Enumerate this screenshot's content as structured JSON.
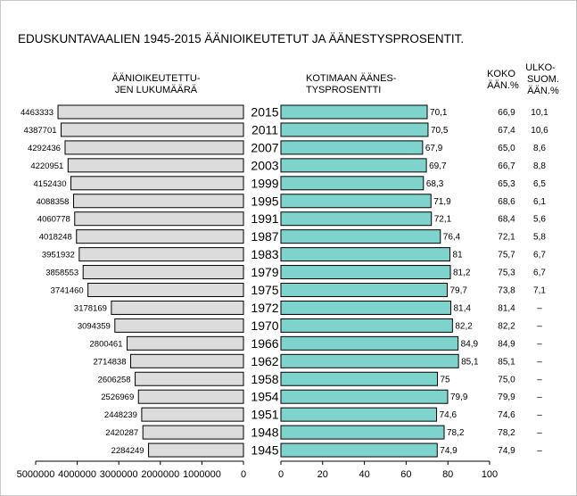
{
  "chart_data": {
    "type": "bar",
    "title": "EDUSKUNTAVAALIEN 1945-2015 ÄÄNIOIKEUTETUT JA ÄÄNESTYSPROSENTIT.",
    "left_panel": {
      "header_lines": [
        "ÄÄNIOIKEUTETTU-",
        "JEN LUKUMÄÄRÄ"
      ],
      "xlim": [
        0,
        5000000
      ],
      "reversed": true,
      "tick_labels": [
        "5000000",
        "4000000",
        "3000000",
        "2000000",
        "1000000",
        "0"
      ],
      "ticks": [
        5000000,
        4000000,
        3000000,
        2000000,
        1000000,
        0
      ]
    },
    "right_panel": {
      "header_lines": [
        "KOTIMAAN ÄÄNES-",
        "TYSPROSENTTI"
      ],
      "xlim": [
        0,
        100
      ],
      "tick_labels": [
        "0",
        "20",
        "40",
        "60",
        "80",
        "100"
      ],
      "ticks": [
        0,
        20,
        40,
        60,
        80,
        100
      ]
    },
    "col_koko_header": [
      "KOKO",
      "ÄÄN.%"
    ],
    "col_ulko_header": [
      "ULKO-",
      "SUOM.",
      "ÄÄN.%"
    ],
    "colors": {
      "left_bar": "#dcdcdc",
      "right_bar": "#7fd3cd",
      "bar_stroke": "#000000"
    },
    "rows": [
      {
        "year": "2015",
        "eligible": 4463333,
        "eligible_label": "4463333",
        "domestic_pct": 70.1,
        "domestic_label": "70,1",
        "total_pct": "66,9",
        "abroad_pct": "10,1"
      },
      {
        "year": "2011",
        "eligible": 4387701,
        "eligible_label": "4387701",
        "domestic_pct": 70.5,
        "domestic_label": "70,5",
        "total_pct": "67,4",
        "abroad_pct": "10,6"
      },
      {
        "year": "2007",
        "eligible": 4292436,
        "eligible_label": "4292436",
        "domestic_pct": 67.9,
        "domestic_label": "67,9",
        "total_pct": "65,0",
        "abroad_pct": "8,6"
      },
      {
        "year": "2003",
        "eligible": 4220951,
        "eligible_label": "4220951",
        "domestic_pct": 69.7,
        "domestic_label": "69,7",
        "total_pct": "66,7",
        "abroad_pct": "8,8"
      },
      {
        "year": "1999",
        "eligible": 4152430,
        "eligible_label": "4152430",
        "domestic_pct": 68.3,
        "domestic_label": "68,3",
        "total_pct": "65,3",
        "abroad_pct": "6,5"
      },
      {
        "year": "1995",
        "eligible": 4088358,
        "eligible_label": "4088358",
        "domestic_pct": 71.9,
        "domestic_label": "71,9",
        "total_pct": "68,6",
        "abroad_pct": "6,1"
      },
      {
        "year": "1991",
        "eligible": 4060778,
        "eligible_label": "4060778",
        "domestic_pct": 72.1,
        "domestic_label": "72,1",
        "total_pct": "68,4",
        "abroad_pct": "5,6"
      },
      {
        "year": "1987",
        "eligible": 4018248,
        "eligible_label": "4018248",
        "domestic_pct": 76.4,
        "domestic_label": "76,4",
        "total_pct": "72,1",
        "abroad_pct": "5,8"
      },
      {
        "year": "1983",
        "eligible": 3951932,
        "eligible_label": "3951932",
        "domestic_pct": 81,
        "domestic_label": "81",
        "total_pct": "75,7",
        "abroad_pct": "6,7"
      },
      {
        "year": "1979",
        "eligible": 3858553,
        "eligible_label": "3858553",
        "domestic_pct": 81.2,
        "domestic_label": "81,2",
        "total_pct": "75,3",
        "abroad_pct": "6,7"
      },
      {
        "year": "1975",
        "eligible": 3741460,
        "eligible_label": "3741460",
        "domestic_pct": 79.7,
        "domestic_label": "79,7",
        "total_pct": "73,8",
        "abroad_pct": "7,1"
      },
      {
        "year": "1972",
        "eligible": 3178169,
        "eligible_label": "3178169",
        "domestic_pct": 81.4,
        "domestic_label": "81,4",
        "total_pct": "81,4",
        "abroad_pct": "–"
      },
      {
        "year": "1970",
        "eligible": 3094359,
        "eligible_label": "3094359",
        "domestic_pct": 82.2,
        "domestic_label": "82,2",
        "total_pct": "82,2",
        "abroad_pct": "–"
      },
      {
        "year": "1966",
        "eligible": 2800461,
        "eligible_label": "2800461",
        "domestic_pct": 84.9,
        "domestic_label": "84,9",
        "total_pct": "84,9",
        "abroad_pct": "–"
      },
      {
        "year": "1962",
        "eligible": 2714838,
        "eligible_label": "2714838",
        "domestic_pct": 85.1,
        "domestic_label": "85,1",
        "total_pct": "85,1",
        "abroad_pct": "–"
      },
      {
        "year": "1958",
        "eligible": 2606258,
        "eligible_label": "2606258",
        "domestic_pct": 75,
        "domestic_label": "75",
        "total_pct": "75,0",
        "abroad_pct": "–"
      },
      {
        "year": "1954",
        "eligible": 2526969,
        "eligible_label": "2526969",
        "domestic_pct": 79.9,
        "domestic_label": "79,9",
        "total_pct": "79,9",
        "abroad_pct": "–"
      },
      {
        "year": "1951",
        "eligible": 2448239,
        "eligible_label": "2448239",
        "domestic_pct": 74.6,
        "domestic_label": "74,6",
        "total_pct": "74,6",
        "abroad_pct": "–"
      },
      {
        "year": "1948",
        "eligible": 2420287,
        "eligible_label": "2420287",
        "domestic_pct": 78.2,
        "domestic_label": "78,2",
        "total_pct": "78,2",
        "abroad_pct": "–"
      },
      {
        "year": "1945",
        "eligible": 2284249,
        "eligible_label": "2284249",
        "domestic_pct": 74.9,
        "domestic_label": "74,9",
        "total_pct": "74,9",
        "abroad_pct": "–"
      }
    ]
  }
}
